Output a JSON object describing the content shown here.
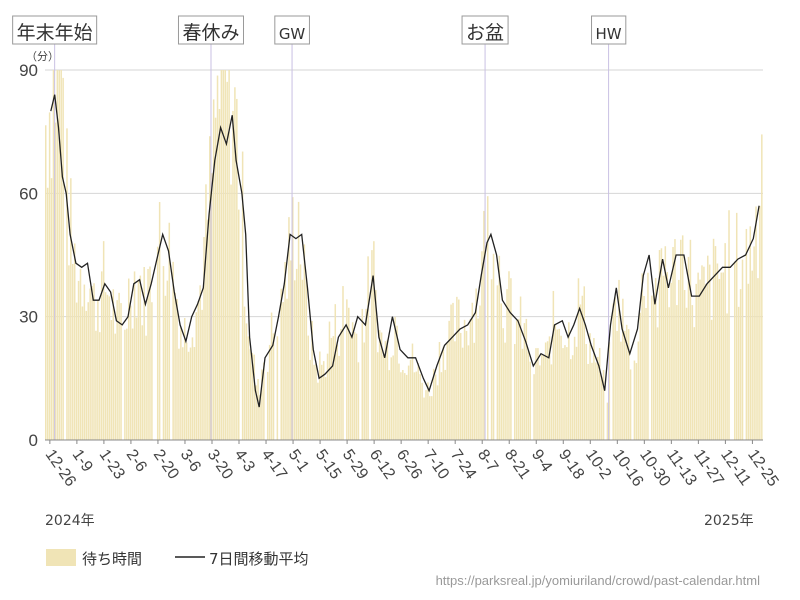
{
  "chart_data": {
    "type": "bar",
    "unit_label": "（分）",
    "ylim": [
      0,
      90
    ],
    "yticks": [
      0,
      30,
      60,
      90
    ],
    "grid": true,
    "x_start_date": "2024-12-24",
    "x_end_date": "2025-12-31",
    "x_tick_labels": [
      "12-26",
      "1-9",
      "1-23",
      "2-6",
      "2-20",
      "3-6",
      "3-20",
      "4-3",
      "4-17",
      "5-1",
      "5-15",
      "5-29",
      "6-12",
      "6-26",
      "7-10",
      "7-24",
      "8-7",
      "8-21",
      "9-4",
      "9-18",
      "10-2",
      "10-16",
      "10-30",
      "11-13",
      "11-27",
      "12-11",
      "12-25"
    ],
    "year_labels": {
      "start": "2024年",
      "end": "2025年"
    },
    "events": [
      {
        "label": "年末年始",
        "date": "2024-12-29"
      },
      {
        "label": "春休み",
        "date": "2025-03-20"
      },
      {
        "label": "GW",
        "date": "2025-05-01"
      },
      {
        "label": "お盆",
        "date": "2025-08-09"
      },
      {
        "label": "HW",
        "date": "2025-10-12"
      }
    ],
    "series": [
      {
        "name": "待ち時間",
        "kind": "bar",
        "color": "#f0e4b6"
      },
      {
        "name": "7日間移動平均",
        "kind": "line",
        "color": "#222222"
      }
    ],
    "wait_anchors": [
      [
        "2024-12-24",
        77
      ],
      [
        "2024-12-28",
        88
      ],
      [
        "2024-12-31",
        90
      ],
      [
        "2025-01-02",
        85
      ],
      [
        "2025-01-04",
        60
      ],
      [
        "2025-01-07",
        45
      ],
      [
        "2025-01-10",
        40
      ],
      [
        "2025-01-14",
        42
      ],
      [
        "2025-01-18",
        33
      ],
      [
        "2025-01-23",
        38
      ],
      [
        "2025-01-26",
        36
      ],
      [
        "2025-01-30",
        28
      ],
      [
        "2025-02-03",
        30
      ],
      [
        "2025-02-06",
        38
      ],
      [
        "2025-02-10",
        40
      ],
      [
        "2025-02-13",
        34
      ],
      [
        "2025-02-17",
        40
      ],
      [
        "2025-02-22",
        50
      ],
      [
        "2025-02-26",
        45
      ],
      [
        "2025-03-01",
        38
      ],
      [
        "2025-03-05",
        25
      ],
      [
        "2025-03-09",
        30
      ],
      [
        "2025-03-13",
        33
      ],
      [
        "2025-03-16",
        45
      ],
      [
        "2025-03-20",
        65
      ],
      [
        "2025-03-23",
        82
      ],
      [
        "2025-03-27",
        88
      ],
      [
        "2025-03-30",
        85
      ],
      [
        "2025-04-02",
        75
      ],
      [
        "2025-04-05",
        55
      ],
      [
        "2025-04-07",
        35
      ],
      [
        "2025-04-10",
        20
      ],
      [
        "2025-04-13",
        12
      ],
      [
        "2025-04-16",
        20
      ],
      [
        "2025-04-20",
        25
      ],
      [
        "2025-04-24",
        35
      ],
      [
        "2025-04-27",
        38
      ],
      [
        "2025-05-01",
        50
      ],
      [
        "2025-05-04",
        55
      ],
      [
        "2025-05-07",
        38
      ],
      [
        "2025-05-10",
        25
      ],
      [
        "2025-05-13",
        18
      ],
      [
        "2025-05-17",
        18
      ],
      [
        "2025-05-20",
        25
      ],
      [
        "2025-05-25",
        28
      ],
      [
        "2025-05-29",
        35
      ],
      [
        "2025-06-02",
        25
      ],
      [
        "2025-06-05",
        28
      ],
      [
        "2025-06-09",
        35
      ],
      [
        "2025-06-12",
        40
      ],
      [
        "2025-06-15",
        25
      ],
      [
        "2025-06-19",
        22
      ],
      [
        "2025-06-23",
        30
      ],
      [
        "2025-06-26",
        22
      ],
      [
        "2025-07-01",
        20
      ],
      [
        "2025-07-06",
        15
      ],
      [
        "2025-07-10",
        12
      ],
      [
        "2025-07-13",
        15
      ],
      [
        "2025-07-17",
        23
      ],
      [
        "2025-07-21",
        25
      ],
      [
        "2025-07-25",
        28
      ],
      [
        "2025-07-29",
        28
      ],
      [
        "2025-08-02",
        33
      ],
      [
        "2025-08-05",
        35
      ],
      [
        "2025-08-09",
        50
      ],
      [
        "2025-08-12",
        55
      ],
      [
        "2025-08-15",
        45
      ],
      [
        "2025-08-19",
        33
      ],
      [
        "2025-08-22",
        32
      ],
      [
        "2025-08-26",
        28
      ],
      [
        "2025-08-30",
        25
      ],
      [
        "2025-09-03",
        18
      ],
      [
        "2025-09-06",
        20
      ],
      [
        "2025-09-10",
        20
      ],
      [
        "2025-09-13",
        28
      ],
      [
        "2025-09-17",
        30
      ],
      [
        "2025-09-20",
        25
      ],
      [
        "2025-09-24",
        28
      ],
      [
        "2025-09-27",
        35
      ],
      [
        "2025-10-01",
        25
      ],
      [
        "2025-10-04",
        22
      ],
      [
        "2025-10-07",
        18
      ],
      [
        "2025-10-11",
        12
      ],
      [
        "2025-10-13",
        25
      ],
      [
        "2025-10-16",
        35
      ],
      [
        "2025-10-20",
        27
      ],
      [
        "2025-10-23",
        22
      ],
      [
        "2025-10-27",
        25
      ],
      [
        "2025-10-30",
        40
      ],
      [
        "2025-11-02",
        45
      ],
      [
        "2025-11-06",
        33
      ],
      [
        "2025-11-10",
        45
      ],
      [
        "2025-11-13",
        38
      ],
      [
        "2025-11-17",
        45
      ],
      [
        "2025-11-21",
        45
      ],
      [
        "2025-11-25",
        35
      ],
      [
        "2025-11-29",
        35
      ],
      [
        "2025-12-03",
        38
      ],
      [
        "2025-12-07",
        40
      ],
      [
        "2025-12-11",
        42
      ],
      [
        "2025-12-15",
        45
      ],
      [
        "2025-12-19",
        42
      ],
      [
        "2025-12-23",
        45
      ],
      [
        "2025-12-28",
        55
      ],
      [
        "2025-12-31",
        88
      ]
    ],
    "ma_anchors": [
      [
        "2024-12-27",
        80
      ],
      [
        "2024-12-29",
        84
      ],
      [
        "2024-12-31",
        76
      ],
      [
        "2025-01-02",
        64
      ],
      [
        "2025-01-04",
        60
      ],
      [
        "2025-01-06",
        50
      ],
      [
        "2025-01-09",
        43
      ],
      [
        "2025-01-12",
        42
      ],
      [
        "2025-01-15",
        43
      ],
      [
        "2025-01-18",
        34
      ],
      [
        "2025-01-21",
        34
      ],
      [
        "2025-01-24",
        38
      ],
      [
        "2025-01-27",
        36
      ],
      [
        "2025-01-30",
        29
      ],
      [
        "2025-02-02",
        28
      ],
      [
        "2025-02-05",
        30
      ],
      [
        "2025-02-08",
        38
      ],
      [
        "2025-02-11",
        39
      ],
      [
        "2025-02-14",
        33
      ],
      [
        "2025-02-17",
        38
      ],
      [
        "2025-02-20",
        44
      ],
      [
        "2025-02-23",
        50
      ],
      [
        "2025-02-26",
        46
      ],
      [
        "2025-03-01",
        36
      ],
      [
        "2025-03-04",
        28
      ],
      [
        "2025-03-07",
        24
      ],
      [
        "2025-03-10",
        30
      ],
      [
        "2025-03-13",
        33
      ],
      [
        "2025-03-16",
        37
      ],
      [
        "2025-03-19",
        55
      ],
      [
        "2025-03-22",
        68
      ],
      [
        "2025-03-25",
        76
      ],
      [
        "2025-03-28",
        72
      ],
      [
        "2025-03-31",
        79
      ],
      [
        "2025-04-02",
        68
      ],
      [
        "2025-04-05",
        60
      ],
      [
        "2025-04-07",
        50
      ],
      [
        "2025-04-09",
        25
      ],
      [
        "2025-04-12",
        12
      ],
      [
        "2025-04-14",
        8
      ],
      [
        "2025-04-17",
        20
      ],
      [
        "2025-04-21",
        23
      ],
      [
        "2025-04-24",
        30
      ],
      [
        "2025-04-27",
        38
      ],
      [
        "2025-04-30",
        50
      ],
      [
        "2025-05-03",
        49
      ],
      [
        "2025-05-06",
        50
      ],
      [
        "2025-05-09",
        37
      ],
      [
        "2025-05-12",
        22
      ],
      [
        "2025-05-15",
        15
      ],
      [
        "2025-05-18",
        16
      ],
      [
        "2025-05-22",
        18
      ],
      [
        "2025-05-25",
        25
      ],
      [
        "2025-05-29",
        28
      ],
      [
        "2025-06-01",
        25
      ],
      [
        "2025-06-04",
        30
      ],
      [
        "2025-06-08",
        28
      ],
      [
        "2025-06-12",
        40
      ],
      [
        "2025-06-15",
        25
      ],
      [
        "2025-06-18",
        20
      ],
      [
        "2025-06-22",
        30
      ],
      [
        "2025-06-26",
        22
      ],
      [
        "2025-06-30",
        20
      ],
      [
        "2025-07-04",
        20
      ],
      [
        "2025-07-08",
        15
      ],
      [
        "2025-07-11",
        12
      ],
      [
        "2025-07-15",
        18
      ],
      [
        "2025-07-19",
        23
      ],
      [
        "2025-07-23",
        25
      ],
      [
        "2025-07-27",
        27
      ],
      [
        "2025-07-31",
        28
      ],
      [
        "2025-08-04",
        31
      ],
      [
        "2025-08-07",
        40
      ],
      [
        "2025-08-10",
        48
      ],
      [
        "2025-08-12",
        50
      ],
      [
        "2025-08-15",
        45
      ],
      [
        "2025-08-18",
        34
      ],
      [
        "2025-08-22",
        31
      ],
      [
        "2025-08-26",
        29
      ],
      [
        "2025-08-30",
        24
      ],
      [
        "2025-09-03",
        18
      ],
      [
        "2025-09-07",
        21
      ],
      [
        "2025-09-11",
        20
      ],
      [
        "2025-09-14",
        28
      ],
      [
        "2025-09-18",
        29
      ],
      [
        "2025-09-21",
        25
      ],
      [
        "2025-09-24",
        28
      ],
      [
        "2025-09-27",
        32
      ],
      [
        "2025-09-30",
        28
      ],
      [
        "2025-10-03",
        23
      ],
      [
        "2025-10-07",
        18
      ],
      [
        "2025-10-10",
        12
      ],
      [
        "2025-10-13",
        28
      ],
      [
        "2025-10-16",
        37
      ],
      [
        "2025-10-19",
        27
      ],
      [
        "2025-10-23",
        21
      ],
      [
        "2025-10-27",
        27
      ],
      [
        "2025-10-30",
        40
      ],
      [
        "2025-11-02",
        45
      ],
      [
        "2025-11-05",
        33
      ],
      [
        "2025-11-09",
        44
      ],
      [
        "2025-11-12",
        37
      ],
      [
        "2025-11-16",
        45
      ],
      [
        "2025-11-20",
        45
      ],
      [
        "2025-11-24",
        35
      ],
      [
        "2025-11-28",
        35
      ],
      [
        "2025-12-02",
        38
      ],
      [
        "2025-12-06",
        40
      ],
      [
        "2025-12-10",
        42
      ],
      [
        "2025-12-14",
        42
      ],
      [
        "2025-12-18",
        44
      ],
      [
        "2025-12-22",
        45
      ],
      [
        "2025-12-26",
        49
      ],
      [
        "2025-12-29",
        57
      ]
    ]
  },
  "source_url": "https://parksreal.jp/yomiuriland/crowd/past-calendar.html"
}
